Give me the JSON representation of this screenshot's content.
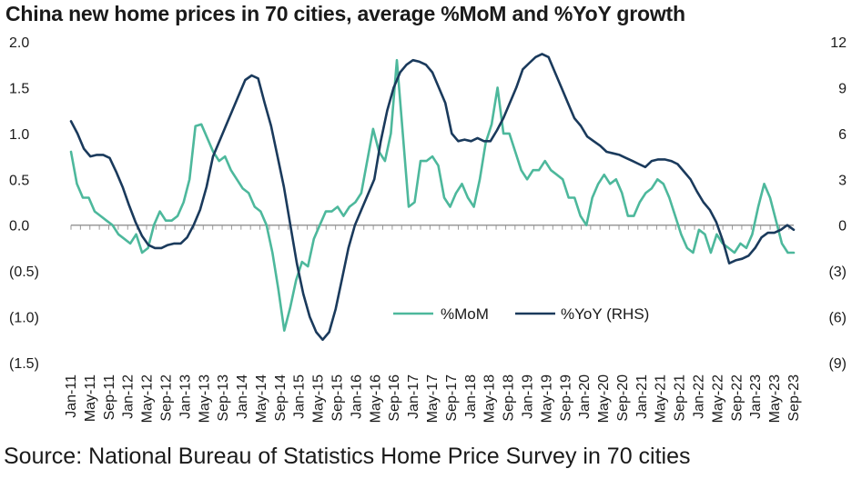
{
  "title": "China new home prices in 70 cities, average %MoM and %YoY growth",
  "source": "Source: National Bureau of Statistics Home Price Survey in 70 cities",
  "chart_data": {
    "type": "line",
    "x_labels": [
      "Jan-11",
      "May-11",
      "Sep-11",
      "Jan-12",
      "May-12",
      "Sep-12",
      "Jan-13",
      "May-13",
      "Sep-13",
      "Jan-14",
      "May-14",
      "Sep-14",
      "Jan-15",
      "May-15",
      "Sep-15",
      "Jan-16",
      "May-16",
      "Sep-16",
      "Jan-17",
      "May-17",
      "Sep-17",
      "Jan-18",
      "May-18",
      "Sep-18",
      "Jan-19",
      "May-19",
      "Sep-19",
      "Jan-20",
      "May-20",
      "Sep-20",
      "Jan-21",
      "May-21",
      "Sep-21",
      "Jan-22",
      "May-22",
      "Sep-22",
      "Jan-23",
      "May-23",
      "Sep-23"
    ],
    "left_axis": {
      "ticks": [
        "2.0",
        "1.5",
        "1.0",
        "0.5",
        "0.0",
        "(0.5)",
        "(1.0)",
        "(1.5)"
      ],
      "ylim": [
        -1.5,
        2.0
      ]
    },
    "right_axis": {
      "ticks": [
        "12",
        "9",
        "6",
        "3",
        "0",
        "(3)",
        "(6)",
        "(9)"
      ],
      "ylim": [
        -9,
        12
      ]
    },
    "legend": {
      "position": "center-right"
    },
    "series": [
      {
        "name": "%MoM",
        "axis": "left",
        "color": "#4db89c",
        "values": [
          0.8,
          0.45,
          0.3,
          0.3,
          0.15,
          0.1,
          0.05,
          0.0,
          -0.1,
          -0.15,
          -0.2,
          -0.1,
          -0.3,
          -0.25,
          0.0,
          0.15,
          0.05,
          0.05,
          0.1,
          0.25,
          0.5,
          1.08,
          1.1,
          0.95,
          0.8,
          0.7,
          0.75,
          0.6,
          0.5,
          0.4,
          0.35,
          0.2,
          0.15,
          0.0,
          -0.3,
          -0.7,
          -1.15,
          -0.9,
          -0.6,
          -0.4,
          -0.45,
          -0.15,
          0.0,
          0.15,
          0.15,
          0.2,
          0.1,
          0.2,
          0.25,
          0.35,
          0.7,
          1.05,
          0.8,
          0.7,
          1.0,
          1.8,
          1.0,
          0.2,
          0.25,
          0.7,
          0.7,
          0.75,
          0.65,
          0.3,
          0.2,
          0.35,
          0.45,
          0.3,
          0.2,
          0.5,
          0.9,
          1.1,
          1.5,
          1.0,
          1.0,
          0.8,
          0.6,
          0.5,
          0.6,
          0.6,
          0.7,
          0.6,
          0.55,
          0.5,
          0.3,
          0.3,
          0.1,
          0.0,
          0.3,
          0.45,
          0.55,
          0.45,
          0.5,
          0.35,
          0.1,
          0.1,
          0.25,
          0.35,
          0.4,
          0.5,
          0.45,
          0.3,
          0.1,
          -0.1,
          -0.25,
          -0.3,
          -0.05,
          -0.1,
          -0.3,
          -0.1,
          -0.2,
          -0.25,
          -0.3,
          -0.2,
          -0.25,
          -0.1,
          0.2,
          0.45,
          0.3,
          0.05,
          -0.2,
          -0.3,
          -0.3
        ]
      },
      {
        "name": "%YoY (RHS)",
        "axis": "right",
        "color": "#1a3a5c",
        "values": [
          6.8,
          6.0,
          5.0,
          4.5,
          4.6,
          4.6,
          4.4,
          3.5,
          2.5,
          1.3,
          0.2,
          -0.7,
          -1.3,
          -1.5,
          -1.5,
          -1.3,
          -1.2,
          -1.2,
          -0.8,
          0.0,
          1.0,
          2.5,
          4.5,
          5.5,
          6.5,
          7.5,
          8.5,
          9.5,
          9.8,
          9.6,
          8.0,
          6.5,
          4.5,
          2.5,
          0.0,
          -2.5,
          -4.5,
          -6.0,
          -7.0,
          -7.5,
          -7.0,
          -5.5,
          -3.5,
          -1.5,
          0.0,
          1.0,
          2.0,
          3.0,
          5.5,
          7.5,
          9.0,
          10.0,
          10.5,
          10.8,
          10.7,
          10.5,
          10.0,
          9.0,
          8.0,
          6.0,
          5.5,
          5.6,
          5.5,
          5.7,
          5.5,
          5.5,
          6.2,
          7.0,
          8.0,
          9.0,
          10.2,
          10.6,
          11.0,
          11.2,
          11.0,
          10.0,
          9.0,
          8.0,
          7.0,
          6.5,
          5.8,
          5.5,
          5.2,
          4.8,
          4.7,
          4.6,
          4.4,
          4.2,
          4.0,
          3.8,
          4.2,
          4.3,
          4.3,
          4.2,
          4.0,
          3.5,
          3.0,
          2.2,
          1.5,
          1.0,
          0.2,
          -1.0,
          -2.5,
          -2.3,
          -2.2,
          -2.0,
          -1.5,
          -0.8,
          -0.5,
          -0.5,
          -0.3,
          0.0,
          -0.3
        ]
      }
    ]
  }
}
